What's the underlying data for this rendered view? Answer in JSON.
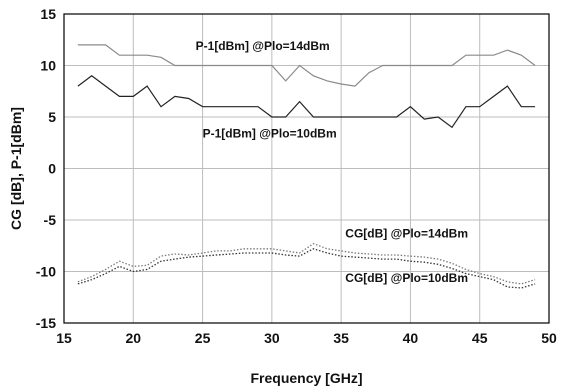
{
  "chart_data": {
    "type": "line",
    "xlabel": "Frequency [GHz]",
    "ylabel": "CG [dB], P-1[dBm]",
    "xlim": [
      15,
      50
    ],
    "ylim": [
      -15,
      15
    ],
    "xticks": [
      15,
      20,
      25,
      30,
      35,
      40,
      45,
      50
    ],
    "yticks": [
      15,
      10,
      5,
      0,
      -5,
      -10,
      -15
    ],
    "grid": true,
    "series": [
      {
        "name": "P-1[dBm] @Plo=14dBm",
        "color": "#8a8a8a",
        "style": "solid",
        "x": [
          16,
          17,
          18,
          19,
          20,
          21,
          22,
          23,
          24,
          25,
          26,
          27,
          28,
          29,
          30,
          31,
          32,
          33,
          34,
          35,
          36,
          37,
          38,
          39,
          40,
          41,
          42,
          43,
          44,
          45,
          46,
          47,
          48,
          49
        ],
        "y": [
          12,
          12,
          12,
          11,
          11,
          11,
          10.8,
          10,
          10,
          10,
          10,
          10,
          10,
          10,
          10,
          8.5,
          10,
          9,
          8.5,
          8.2,
          8,
          9.3,
          10,
          10,
          10,
          10,
          10,
          10,
          11,
          11,
          11,
          11.5,
          11,
          10
        ]
      },
      {
        "name": "P-1[dBm] @Plo=10dBm",
        "color": "#222222",
        "style": "solid",
        "x": [
          16,
          17,
          18,
          19,
          20,
          21,
          22,
          23,
          24,
          25,
          26,
          27,
          28,
          29,
          30,
          31,
          32,
          33,
          34,
          35,
          36,
          37,
          38,
          39,
          40,
          41,
          42,
          43,
          44,
          45,
          46,
          47,
          48,
          49
        ],
        "y": [
          8,
          9,
          8,
          7,
          7,
          8,
          6,
          7,
          6.8,
          6,
          6,
          6,
          6,
          6,
          5,
          5,
          6.5,
          5,
          5,
          5,
          5,
          5,
          5,
          5,
          6,
          4.8,
          5,
          4,
          6,
          6,
          7,
          8,
          6,
          6
        ]
      },
      {
        "name": "CG[dB] @Plo=14dBm",
        "color": "#7a7a7a",
        "style": "dotted",
        "x": [
          16,
          17,
          18,
          19,
          20,
          21,
          22,
          23,
          24,
          25,
          26,
          27,
          28,
          29,
          30,
          31,
          32,
          33,
          34,
          35,
          36,
          37,
          38,
          39,
          40,
          41,
          42,
          43,
          44,
          45,
          46,
          47,
          48,
          49
        ],
        "y": [
          -11,
          -10.5,
          -9.8,
          -9,
          -9.5,
          -9.4,
          -8.5,
          -8.3,
          -8.4,
          -8.2,
          -8,
          -8,
          -7.8,
          -7.8,
          -7.8,
          -8,
          -8.2,
          -7.3,
          -7.8,
          -8,
          -8.2,
          -8.3,
          -8.4,
          -8.4,
          -8.5,
          -8.6,
          -8.8,
          -9.2,
          -9.8,
          -10.2,
          -10.5,
          -11,
          -11.2,
          -10.8
        ]
      },
      {
        "name": "CG[dB] @Plo=10dBm",
        "color": "#333333",
        "style": "dotted",
        "x": [
          16,
          17,
          18,
          19,
          20,
          21,
          22,
          23,
          24,
          25,
          26,
          27,
          28,
          29,
          30,
          31,
          32,
          33,
          34,
          35,
          36,
          37,
          38,
          39,
          40,
          41,
          42,
          43,
          44,
          45,
          46,
          47,
          48,
          49
        ],
        "y": [
          -11.2,
          -10.8,
          -10.2,
          -9.5,
          -10,
          -9.8,
          -9,
          -8.8,
          -8.6,
          -8.5,
          -8.4,
          -8.3,
          -8.2,
          -8.2,
          -8.2,
          -8.4,
          -8.5,
          -7.8,
          -8.2,
          -8.5,
          -8.6,
          -8.7,
          -8.8,
          -8.8,
          -9,
          -9.1,
          -9.3,
          -9.7,
          -10.2,
          -10.5,
          -10.8,
          -11.5,
          -11.6,
          -11.2
        ]
      }
    ],
    "annotations": [
      {
        "text": "P-1[dBm] @Plo=14dBm",
        "x": 24.5,
        "y": 11.5
      },
      {
        "text": "P-1[dBm] @Plo=10dBm",
        "x": 25,
        "y": 3.0
      },
      {
        "text": "CG[dB] @Plo=14dBm",
        "x": 35.3,
        "y": -6.7
      },
      {
        "text": "CG[dB] @Plo=10dBm",
        "x": 35.3,
        "y": -11.0
      }
    ]
  }
}
